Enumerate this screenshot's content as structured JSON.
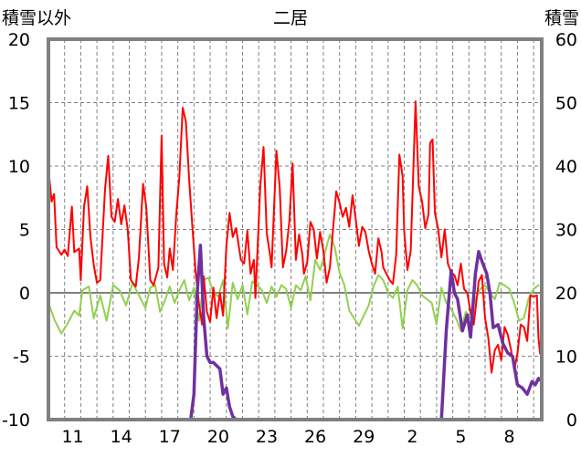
{
  "chart_data": {
    "type": "line",
    "title": "二居",
    "ylabel_left": "積雪以外",
    "ylabel_right": "積雪",
    "ylim_left": [
      -10,
      20
    ],
    "ylim_right": [
      0,
      60
    ],
    "yticks_left": [
      "20",
      "15",
      "10",
      "5",
      "0",
      "-5",
      "-10"
    ],
    "yticks_right": [
      "60",
      "50",
      "40",
      "30",
      "20",
      "10",
      "0"
    ],
    "xticks": [
      "11",
      "14",
      "17",
      "20",
      "23",
      "26",
      "29",
      "2",
      "5",
      "8"
    ],
    "x_range_days": [
      0,
      30.5
    ],
    "grid": true,
    "colors": {
      "red_series": "#ff0000",
      "green_series": "#92d050",
      "purple_series": "#7030a0",
      "frame": "#808080",
      "grid": "#808080"
    },
    "series": [
      {
        "axis": "left",
        "color": "#ff0000",
        "points": [
          [
            0.0,
            9.8
          ],
          [
            0.2,
            7.2
          ],
          [
            0.35,
            7.8
          ],
          [
            0.5,
            3.6
          ],
          [
            0.8,
            3.0
          ],
          [
            1.0,
            3.4
          ],
          [
            1.2,
            2.9
          ],
          [
            1.45,
            6.8
          ],
          [
            1.6,
            3.2
          ],
          [
            1.9,
            3.5
          ],
          [
            2.0,
            1.0
          ],
          [
            2.2,
            6.8
          ],
          [
            2.4,
            8.4
          ],
          [
            2.6,
            4.4
          ],
          [
            2.8,
            2.2
          ],
          [
            3.0,
            0.8
          ],
          [
            3.2,
            1.0
          ],
          [
            3.5,
            8.2
          ],
          [
            3.7,
            10.8
          ],
          [
            3.9,
            6.0
          ],
          [
            4.1,
            5.6
          ],
          [
            4.3,
            7.4
          ],
          [
            4.5,
            5.4
          ],
          [
            4.7,
            6.9
          ],
          [
            4.9,
            5.0
          ],
          [
            5.1,
            1.0
          ],
          [
            5.4,
            0.5
          ],
          [
            5.6,
            2.8
          ],
          [
            5.85,
            8.6
          ],
          [
            6.05,
            6.8
          ],
          [
            6.3,
            1.0
          ],
          [
            6.5,
            0.6
          ],
          [
            6.8,
            2.0
          ],
          [
            7.0,
            12.4
          ],
          [
            7.15,
            2.3
          ],
          [
            7.35,
            1.2
          ],
          [
            7.5,
            3.5
          ],
          [
            7.7,
            1.8
          ],
          [
            7.9,
            6.1
          ],
          [
            8.1,
            9.2
          ],
          [
            8.3,
            14.6
          ],
          [
            8.5,
            13.5
          ],
          [
            8.7,
            9.0
          ],
          [
            8.9,
            5.2
          ],
          [
            9.1,
            1.7
          ],
          [
            9.3,
            -0.8
          ],
          [
            9.5,
            -2.5
          ],
          [
            9.6,
            1.3
          ],
          [
            9.8,
            -1.5
          ],
          [
            10.0,
            -2.3
          ],
          [
            10.2,
            0.4
          ],
          [
            10.4,
            -2.0
          ],
          [
            10.6,
            0.0
          ],
          [
            10.8,
            -1.8
          ],
          [
            11.0,
            3.7
          ],
          [
            11.2,
            6.3
          ],
          [
            11.4,
            4.4
          ],
          [
            11.6,
            5.1
          ],
          [
            11.9,
            2.6
          ],
          [
            12.1,
            2.3
          ],
          [
            12.3,
            4.9
          ],
          [
            12.5,
            1.5
          ],
          [
            12.7,
            2.6
          ],
          [
            12.8,
            -0.4
          ],
          [
            13.1,
            8.4
          ],
          [
            13.3,
            11.5
          ],
          [
            13.5,
            4.7
          ],
          [
            13.7,
            3.0
          ],
          [
            13.8,
            2.0
          ],
          [
            14.1,
            11.2
          ],
          [
            14.3,
            8.3
          ],
          [
            14.5,
            2.0
          ],
          [
            14.7,
            3.3
          ],
          [
            14.9,
            5.7
          ],
          [
            15.1,
            10.2
          ],
          [
            15.3,
            2.6
          ],
          [
            15.5,
            4.6
          ],
          [
            15.7,
            3.0
          ],
          [
            15.8,
            1.5
          ],
          [
            16.0,
            2.4
          ],
          [
            16.2,
            5.6
          ],
          [
            16.4,
            5.0
          ],
          [
            16.6,
            2.7
          ],
          [
            16.8,
            4.8
          ],
          [
            17.0,
            3.3
          ],
          [
            17.2,
            0.8
          ],
          [
            17.4,
            2.0
          ],
          [
            17.5,
            3.5
          ],
          [
            17.8,
            8.0
          ],
          [
            18.0,
            7.1
          ],
          [
            18.2,
            6.0
          ],
          [
            18.4,
            6.7
          ],
          [
            18.6,
            5.2
          ],
          [
            18.8,
            7.7
          ],
          [
            19.0,
            5.8
          ],
          [
            19.2,
            3.7
          ],
          [
            19.4,
            5.2
          ],
          [
            19.6,
            4.8
          ],
          [
            19.8,
            3.3
          ],
          [
            20.0,
            2.3
          ],
          [
            20.2,
            1.5
          ],
          [
            20.4,
            4.3
          ],
          [
            20.6,
            3.2
          ],
          [
            20.7,
            2.0
          ],
          [
            20.9,
            1.5
          ],
          [
            21.1,
            1.0
          ],
          [
            21.3,
            0.7
          ],
          [
            21.5,
            3.0
          ],
          [
            21.7,
            10.9
          ],
          [
            21.9,
            9.2
          ],
          [
            22.0,
            4.8
          ],
          [
            22.2,
            1.8
          ],
          [
            22.4,
            3.3
          ],
          [
            22.7,
            15.1
          ],
          [
            22.9,
            8.4
          ],
          [
            23.1,
            7.2
          ],
          [
            23.3,
            5.1
          ],
          [
            23.5,
            6.2
          ],
          [
            23.6,
            11.8
          ],
          [
            23.75,
            12.1
          ],
          [
            23.9,
            6.3
          ],
          [
            24.1,
            5.0
          ],
          [
            24.3,
            2.8
          ],
          [
            24.5,
            5.0
          ],
          [
            24.7,
            2.3
          ],
          [
            24.9,
            1.6
          ],
          [
            25.1,
            1.4
          ],
          [
            25.3,
            0.6
          ],
          [
            25.5,
            2.3
          ],
          [
            25.7,
            0.3
          ],
          [
            25.9,
            0.0
          ],
          [
            26.1,
            -1.6
          ],
          [
            26.3,
            -2.5
          ],
          [
            26.6,
            0.9
          ],
          [
            26.8,
            1.4
          ],
          [
            27.0,
            -2.0
          ],
          [
            27.2,
            -3.6
          ],
          [
            27.4,
            -6.3
          ],
          [
            27.6,
            -4.5
          ],
          [
            27.8,
            -4.1
          ],
          [
            28.0,
            -5.3
          ],
          [
            28.2,
            -2.7
          ],
          [
            28.4,
            -3.3
          ],
          [
            28.6,
            -4.5
          ],
          [
            28.8,
            -6.1
          ],
          [
            29.0,
            -4.8
          ],
          [
            29.2,
            -2.5
          ],
          [
            29.4,
            -2.7
          ],
          [
            29.6,
            -3.8
          ],
          [
            29.8,
            -0.2
          ],
          [
            30.0,
            -0.3
          ],
          [
            30.2,
            -0.2
          ],
          [
            30.3,
            -3.6
          ],
          [
            30.4,
            -4.8
          ]
        ]
      },
      {
        "axis": "left",
        "color": "#92d050",
        "points": [
          [
            0.0,
            -0.8
          ],
          [
            0.4,
            -2.2
          ],
          [
            0.8,
            -3.2
          ],
          [
            1.2,
            -2.4
          ],
          [
            1.6,
            -1.4
          ],
          [
            1.9,
            -1.8
          ],
          [
            2.1,
            0.2
          ],
          [
            2.5,
            0.5
          ],
          [
            2.8,
            -2.0
          ],
          [
            3.2,
            -0.2
          ],
          [
            3.6,
            -2.2
          ],
          [
            4.0,
            0.6
          ],
          [
            4.4,
            0.2
          ],
          [
            4.8,
            -1.0
          ],
          [
            5.2,
            0.8
          ],
          [
            5.6,
            -0.2
          ],
          [
            6.0,
            -1.2
          ],
          [
            6.3,
            0.4
          ],
          [
            6.6,
            0.6
          ],
          [
            6.9,
            -1.5
          ],
          [
            7.2,
            -0.6
          ],
          [
            7.5,
            0.5
          ],
          [
            7.8,
            -0.8
          ],
          [
            8.1,
            0.2
          ],
          [
            8.4,
            1.0
          ],
          [
            8.7,
            -0.6
          ],
          [
            9.0,
            0.4
          ],
          [
            9.3,
            -2.2
          ],
          [
            9.6,
            1.0
          ],
          [
            9.9,
            1.2
          ],
          [
            10.2,
            0.0
          ],
          [
            10.5,
            -0.3
          ],
          [
            10.8,
            1.0
          ],
          [
            11.1,
            -2.8
          ],
          [
            11.4,
            0.8
          ],
          [
            11.7,
            -0.5
          ],
          [
            12.0,
            0.6
          ],
          [
            12.3,
            -1.7
          ],
          [
            12.6,
            0.9
          ],
          [
            12.9,
            0.6
          ],
          [
            13.2,
            0.2
          ],
          [
            13.5,
            -0.8
          ],
          [
            13.8,
            0.5
          ],
          [
            14.1,
            -0.3
          ],
          [
            14.4,
            0.6
          ],
          [
            14.7,
            0.3
          ],
          [
            15.0,
            -1.2
          ],
          [
            15.3,
            0.6
          ],
          [
            15.6,
            0.2
          ],
          [
            15.9,
            1.3
          ],
          [
            16.2,
            -0.6
          ],
          [
            16.5,
            2.6
          ],
          [
            16.8,
            1.8
          ],
          [
            17.1,
            3.2
          ],
          [
            17.4,
            4.6
          ],
          [
            17.7,
            3.6
          ],
          [
            18.0,
            1.6
          ],
          [
            18.3,
            0.6
          ],
          [
            18.6,
            -1.4
          ],
          [
            18.9,
            -2.0
          ],
          [
            19.2,
            -2.6
          ],
          [
            19.5,
            -1.8
          ],
          [
            19.8,
            -1.0
          ],
          [
            20.1,
            0.5
          ],
          [
            20.4,
            1.4
          ],
          [
            20.7,
            1.0
          ],
          [
            21.0,
            0.0
          ],
          [
            21.3,
            -0.4
          ],
          [
            21.6,
            0.5
          ],
          [
            21.9,
            -2.8
          ],
          [
            22.2,
            0.2
          ],
          [
            22.5,
            1.0
          ],
          [
            22.8,
            0.6
          ],
          [
            23.1,
            -0.2
          ],
          [
            23.4,
            -0.5
          ],
          [
            23.7,
            -0.8
          ],
          [
            24.0,
            -2.5
          ],
          [
            24.3,
            0.4
          ],
          [
            24.6,
            -0.8
          ],
          [
            24.9,
            -1.3
          ],
          [
            25.2,
            -2.0
          ],
          [
            25.5,
            -3.0
          ],
          [
            25.8,
            -1.5
          ],
          [
            26.1,
            -2.0
          ],
          [
            26.4,
            -0.5
          ],
          [
            26.7,
            0.3
          ],
          [
            27.0,
            0.6
          ],
          [
            27.3,
            0.0
          ],
          [
            27.6,
            -0.5
          ],
          [
            27.9,
            0.8
          ],
          [
            28.2,
            0.6
          ],
          [
            28.5,
            0.3
          ],
          [
            28.8,
            -0.8
          ],
          [
            29.1,
            -2.2
          ],
          [
            29.4,
            -2.0
          ],
          [
            29.7,
            -0.4
          ],
          [
            30.0,
            0.3
          ],
          [
            30.3,
            0.6
          ]
        ]
      },
      {
        "axis": "right",
        "color": "#7030a0",
        "points": [
          [
            0.0,
            0.0
          ],
          [
            8.8,
            0.0
          ],
          [
            9.0,
            4.0
          ],
          [
            9.2,
            20.0
          ],
          [
            9.4,
            27.5
          ],
          [
            9.6,
            16.0
          ],
          [
            9.8,
            10.0
          ],
          [
            10.0,
            9.0
          ],
          [
            10.2,
            9.0
          ],
          [
            10.4,
            8.5
          ],
          [
            10.6,
            8.0
          ],
          [
            10.8,
            4.0
          ],
          [
            11.0,
            5.0
          ],
          [
            11.2,
            2.0
          ],
          [
            11.4,
            0.5
          ],
          [
            11.6,
            0.0
          ],
          [
            24.3,
            0.0
          ],
          [
            24.6,
            14.0
          ],
          [
            24.9,
            23.5
          ],
          [
            25.1,
            20.0
          ],
          [
            25.3,
            19.0
          ],
          [
            25.6,
            14.0
          ],
          [
            25.9,
            16.5
          ],
          [
            26.1,
            13.0
          ],
          [
            26.4,
            23.0
          ],
          [
            26.6,
            26.5
          ],
          [
            26.8,
            25.0
          ],
          [
            27.1,
            23.0
          ],
          [
            27.3,
            20.0
          ],
          [
            27.5,
            14.5
          ],
          [
            27.8,
            15.0
          ],
          [
            28.1,
            12.0
          ],
          [
            28.4,
            10.5
          ],
          [
            28.7,
            10.0
          ],
          [
            29.0,
            5.5
          ],
          [
            29.3,
            5.0
          ],
          [
            29.6,
            4.0
          ],
          [
            29.9,
            6.0
          ],
          [
            30.1,
            5.5
          ],
          [
            30.3,
            6.5
          ],
          [
            30.5,
            6.0
          ]
        ]
      }
    ]
  }
}
